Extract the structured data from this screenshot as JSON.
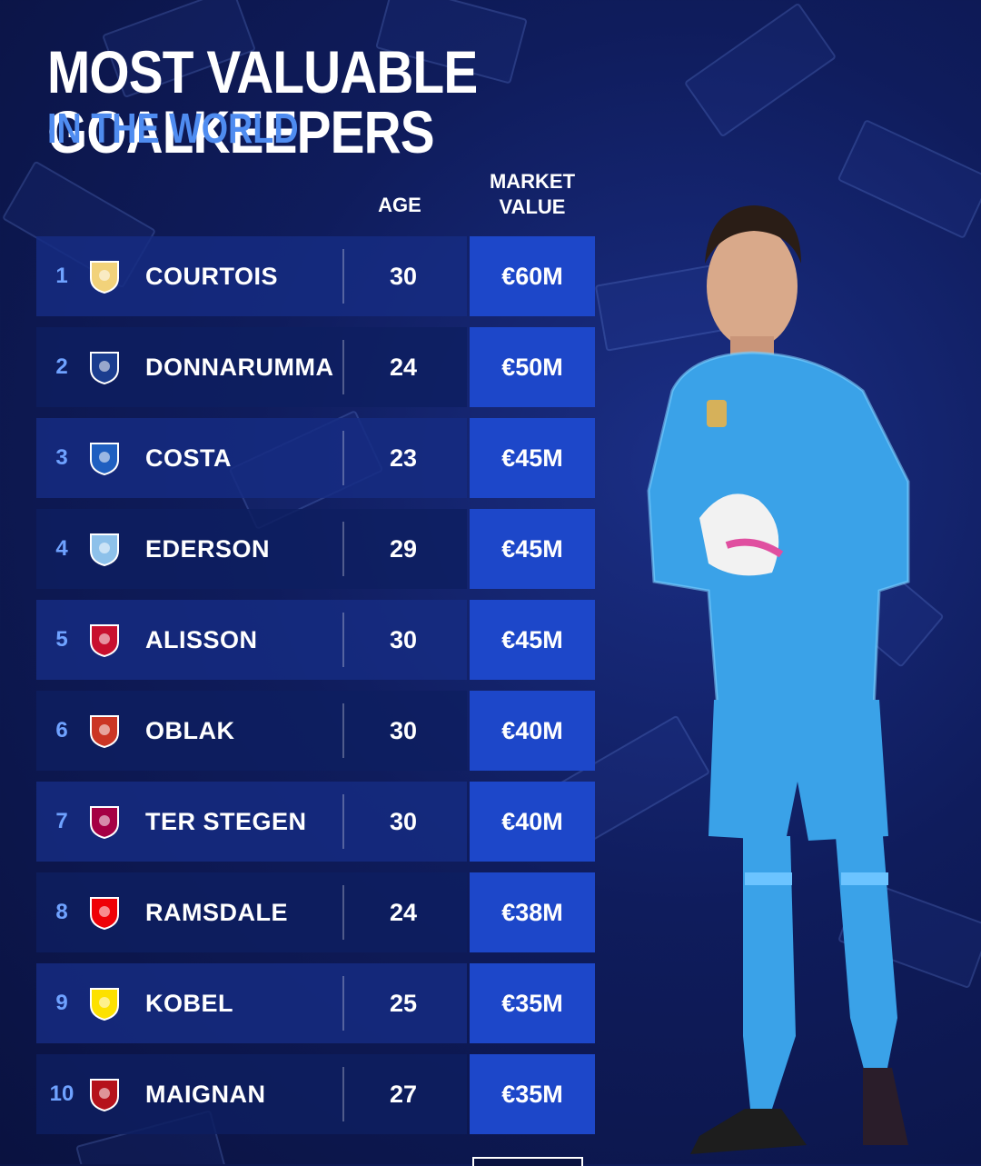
{
  "title": "MOST VALUABLE GOALKEEPERS",
  "subtitle": "IN THE WORLD",
  "headers": {
    "age": "AGE",
    "market_value_line1": "MARKET",
    "market_value_line2": "VALUE"
  },
  "players": [
    {
      "rank": "1",
      "name": "COURTOIS",
      "age": "30",
      "value": "€60M",
      "club_icon": "real-madrid-crest-icon",
      "color": "#f2d27a"
    },
    {
      "rank": "2",
      "name": "DONNARUMMA",
      "age": "24",
      "value": "€50M",
      "club_icon": "psg-crest-icon",
      "color": "#1b3d8f"
    },
    {
      "rank": "3",
      "name": "COSTA",
      "age": "23",
      "value": "€45M",
      "club_icon": "porto-crest-icon",
      "color": "#1f5fc0"
    },
    {
      "rank": "4",
      "name": "EDERSON",
      "age": "29",
      "value": "€45M",
      "club_icon": "man-city-crest-icon",
      "color": "#8dc1ea"
    },
    {
      "rank": "5",
      "name": "ALISSON",
      "age": "30",
      "value": "€45M",
      "club_icon": "liverpool-crest-icon",
      "color": "#c8102e"
    },
    {
      "rank": "6",
      "name": "OBLAK",
      "age": "30",
      "value": "€40M",
      "club_icon": "atletico-crest-icon",
      "color": "#cb3524"
    },
    {
      "rank": "7",
      "name": "TER STEGEN",
      "age": "30",
      "value": "€40M",
      "club_icon": "barcelona-crest-icon",
      "color": "#a50044"
    },
    {
      "rank": "8",
      "name": "RAMSDALE",
      "age": "24",
      "value": "€38M",
      "club_icon": "arsenal-crest-icon",
      "color": "#ef0107"
    },
    {
      "rank": "9",
      "name": "KOBEL",
      "age": "25",
      "value": "€35M",
      "club_icon": "dortmund-crest-icon",
      "color": "#fde100"
    },
    {
      "rank": "10",
      "name": "MAIGNAN",
      "age": "27",
      "value": "€35M",
      "club_icon": "ac-milan-crest-icon",
      "color": "#b5121b"
    }
  ],
  "colors": {
    "accent": "#4f8cf0",
    "value_cell": "#1d47c9",
    "background": "#0f1c5c",
    "kit": "#3aa2e8"
  }
}
